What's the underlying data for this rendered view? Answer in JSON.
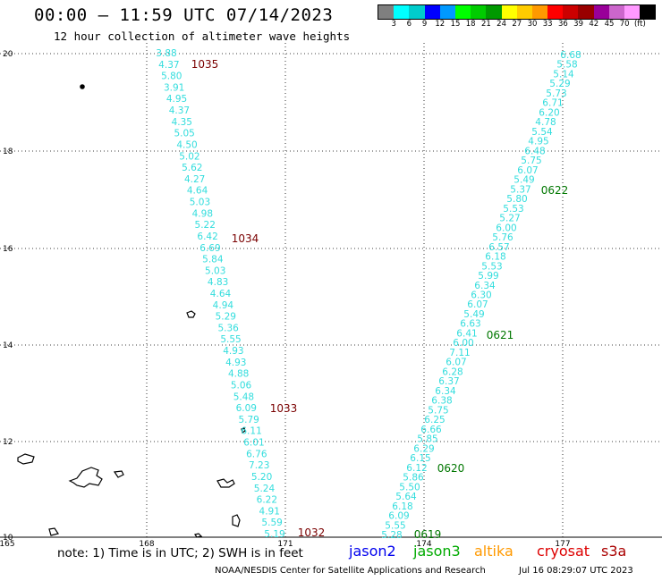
{
  "header": {
    "title": "00:00 – 11:59 UTC 07/14/2023",
    "subtitle": "12 hour collection of altimeter wave heights"
  },
  "legend": {
    "colors": [
      "#7f7f7f",
      "#00ffff",
      "#00cccc",
      "#0000ff",
      "#0099ff",
      "#00ff00",
      "#00cc00",
      "#009900",
      "#ffff00",
      "#ffcc00",
      "#ff9900",
      "#ff0000",
      "#cc0000",
      "#990000",
      "#990099",
      "#cc66cc",
      "#ff99ff",
      "#000000"
    ],
    "labels": [
      "3",
      "6",
      "9",
      "12",
      "15",
      "18",
      "21",
      "24",
      "27",
      "30",
      "33",
      "36",
      "39",
      "42",
      "45",
      "70",
      "(ft)"
    ]
  },
  "map": {
    "lat_ticks": [
      "20",
      "18",
      "16",
      "14",
      "12",
      "10"
    ],
    "lon_ticks": [
      "165",
      "168",
      "171",
      "174",
      "177"
    ],
    "track_color": "#33dddd",
    "west_track": {
      "labels": [
        "1035",
        "1034",
        "1033",
        "1032"
      ],
      "label_color": "#7a0000",
      "values": [
        "3.88",
        "4.37",
        "5.80",
        "3.91",
        "4.95",
        "4.37",
        "4.35",
        "5.05",
        "4.50",
        "5.02",
        "5.62",
        "4.27",
        "4.64",
        "5.03",
        "4.98",
        "5.22",
        "6.42",
        "6.69",
        "5.84",
        "5.03",
        "4.83",
        "4.64",
        "4.94",
        "5.29",
        "5.36",
        "5.55",
        "4.93",
        "4.93",
        "4.88",
        "5.06",
        "5.48",
        "6.09",
        "5.79",
        "6.11",
        "6.01",
        "6.76",
        "7.23",
        "5.20",
        "5.24",
        "6.22",
        "4.91",
        "5.59",
        "5.19"
      ]
    },
    "east_track": {
      "labels": [
        "0622",
        "0621",
        "0620",
        "0619"
      ],
      "label_color": "#007700",
      "values": [
        "6.68",
        "5.58",
        "5.14",
        "5.29",
        "5.73",
        "6.71",
        "6.20",
        "4.78",
        "5.54",
        "4.95",
        "6.48",
        "5.75",
        "6.07",
        "5.49",
        "5.37",
        "5.80",
        "5.53",
        "5.27",
        "6.00",
        "5.76",
        "6.57",
        "6.18",
        "5.53",
        "5.99",
        "6.34",
        "6.30",
        "6.07",
        "5.49",
        "6.63",
        "6.41",
        "6.00",
        "7.11",
        "6.07",
        "6.28",
        "6.37",
        "6.34",
        "6.38",
        "5.75",
        "6.25",
        "6.66",
        "5.85",
        "6.29",
        "6.15",
        "6.12",
        "5.86",
        "5.50",
        "5.64",
        "6.18",
        "6.09",
        "5.55",
        "5.28"
      ]
    }
  },
  "footer": {
    "note": "note: 1) Time is in UTC; 2) SWH is in feet",
    "satellites": [
      {
        "name": "jason2",
        "color": "#0000ee"
      },
      {
        "name": "jason3",
        "color": "#00aa00"
      },
      {
        "name": "altika",
        "color": "#ff9900"
      },
      {
        "name": "cryosat",
        "color": "#dd0000"
      },
      {
        "name": "s3a",
        "color": "#aa0000"
      }
    ],
    "credit": "NOAA/NESDIS Center for Satellite Applications and Research",
    "timestamp": "Jul 16 08:29:07 UTC 2023"
  }
}
